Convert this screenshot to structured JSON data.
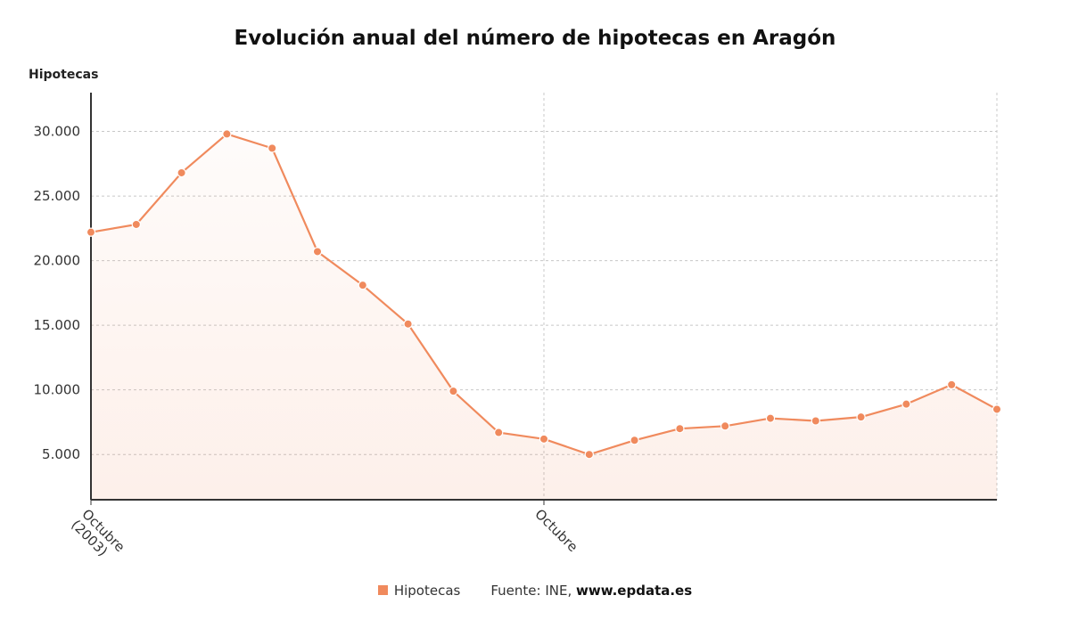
{
  "chart_data": {
    "type": "area",
    "title": "Evolución anual del número de hipotecas en Aragón",
    "ylabel": "Hipotecas",
    "xlabel": "",
    "ylim": [
      1500,
      33000
    ],
    "yticks": [
      5000,
      10000,
      15000,
      20000,
      25000,
      30000
    ],
    "ytick_labels": [
      "5.000",
      "10.000",
      "15.000",
      "20.000",
      "25.000",
      "30.000"
    ],
    "xtick_labels": [
      {
        "index": 0,
        "lines": [
          "Octubre",
          "(2003)"
        ]
      },
      {
        "index": 10,
        "lines": [
          "Octubre"
        ]
      }
    ],
    "grid": true,
    "legend_position": "bottom",
    "color": "#f08a5d",
    "series": [
      {
        "name": "Hipotecas",
        "values": [
          22200,
          22800,
          26800,
          29800,
          28700,
          20700,
          18100,
          15100,
          9900,
          6700,
          6200,
          5000,
          6100,
          7000,
          7200,
          7800,
          7600,
          7900,
          8900,
          10400,
          8500
        ]
      }
    ]
  },
  "legend": {
    "series_label": "Hipotecas",
    "source_text": "Fuente: INE, ",
    "source_site": "www.epdata.es"
  }
}
